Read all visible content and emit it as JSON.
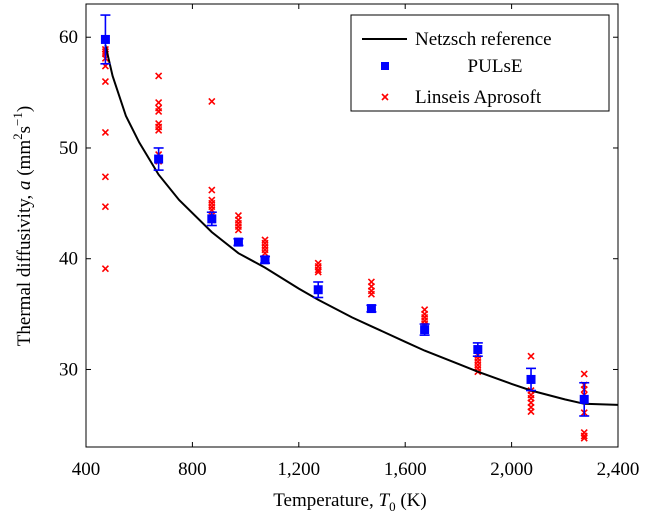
{
  "chart_data": {
    "type": "scatter",
    "xlabel": "Temperature, T0 (K)",
    "ylabel": "Thermal diffusivity, a (mm2s−1)",
    "xlim": [
      400,
      2400
    ],
    "ylim": [
      23,
      63
    ],
    "xticks": [
      400,
      800,
      1200,
      1600,
      2000,
      2400
    ],
    "xtick_labels": [
      "400",
      "800",
      "1,200",
      "1,600",
      "2,000",
      "2,400"
    ],
    "yticks": [
      30,
      40,
      50,
      60
    ],
    "ytick_labels": [
      "30",
      "40",
      "50",
      "60"
    ],
    "grid": false,
    "legend_position": "top-right",
    "colors": {
      "reference": "#000000",
      "pulse": "#0000ff",
      "linseis": "#ff0000"
    },
    "series": [
      {
        "name": "Netzsch reference",
        "kind": "line",
        "x": [
          473,
          500,
          550,
          600,
          673,
          750,
          873,
          973,
          1073,
          1200,
          1273,
          1400,
          1473,
          1600,
          1673,
          1800,
          1873,
          2000,
          2073,
          2200,
          2273,
          2400
        ],
        "y": [
          59.3,
          56.5,
          52.9,
          50.5,
          47.6,
          45.3,
          42.4,
          40.5,
          39.2,
          37.3,
          36.3,
          34.7,
          33.9,
          32.5,
          31.7,
          30.5,
          29.8,
          28.7,
          28.1,
          27.3,
          26.9,
          26.8
        ]
      },
      {
        "name": "PULsE",
        "kind": "scatter-errorbar",
        "x": [
          473,
          673,
          873,
          973,
          1073,
          1273,
          1473,
          1673,
          1873,
          2073,
          2273
        ],
        "y": [
          59.8,
          49.0,
          43.6,
          41.5,
          39.9,
          37.2,
          35.5,
          33.6,
          31.8,
          29.1,
          27.3
        ],
        "err": [
          2.2,
          1.0,
          0.6,
          0.3,
          0.3,
          0.7,
          0.3,
          0.5,
          0.6,
          1.0,
          1.5
        ]
      },
      {
        "name": "Linseis Aprosoft",
        "kind": "scatter",
        "x": [
          473,
          473,
          473,
          473,
          473,
          473,
          473,
          473,
          473,
          473,
          673,
          673,
          673,
          673,
          673,
          673,
          673,
          673,
          673,
          873,
          873,
          873,
          873,
          873,
          873,
          873,
          873,
          973,
          973,
          973,
          973,
          973,
          1073,
          1073,
          1073,
          1073,
          1073,
          1273,
          1273,
          1273,
          1273,
          1473,
          1473,
          1473,
          1473,
          1673,
          1673,
          1673,
          1673,
          1673,
          1673,
          1873,
          1873,
          1873,
          1873,
          1873,
          1873,
          1873,
          2073,
          2073,
          2073,
          2073,
          2073,
          2073,
          2073,
          2073,
          2273,
          2273,
          2273,
          2273,
          2273,
          2273,
          2273,
          2273
        ],
        "y": [
          58.9,
          58.5,
          58.1,
          57.4,
          56.0,
          51.4,
          47.4,
          44.7,
          39.1,
          58.7,
          56.5,
          54.1,
          53.6,
          53.3,
          52.2,
          51.9,
          51.6,
          49.4,
          48.8,
          54.2,
          46.2,
          45.3,
          45.0,
          44.7,
          44.4,
          43.9,
          43.5,
          43.9,
          43.5,
          43.2,
          42.9,
          42.6,
          41.7,
          41.4,
          41.1,
          40.8,
          40.5,
          39.6,
          39.3,
          39.0,
          38.8,
          37.9,
          37.5,
          37.1,
          36.8,
          35.4,
          35.0,
          34.7,
          34.4,
          34.1,
          33.9,
          31.7,
          31.3,
          31.0,
          30.7,
          30.4,
          30.1,
          29.8,
          31.2,
          29.1,
          28.1,
          27.7,
          27.4,
          27.0,
          26.6,
          26.2,
          29.6,
          28.6,
          28.2,
          27.7,
          26.1,
          24.3,
          24.0,
          23.8
        ]
      }
    ]
  }
}
